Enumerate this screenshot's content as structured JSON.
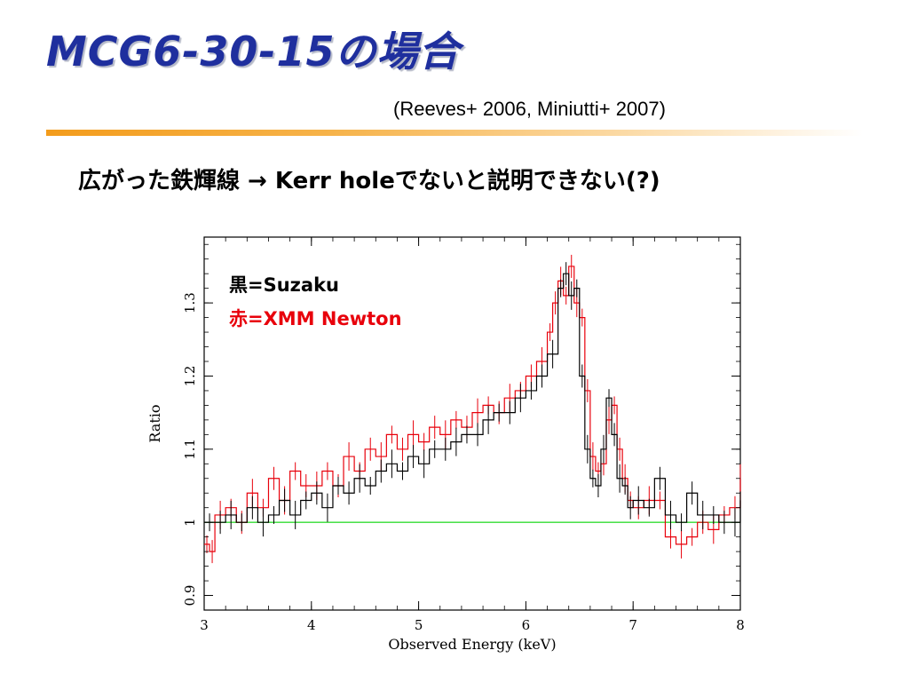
{
  "slide": {
    "title": "MCG6-30-15の場合",
    "citation": "(Reeves+ 2006, Miniutti+ 2007)",
    "statement": "広がった鉄輝線 → Kerr holeでないと説明できない(?)"
  },
  "colors": {
    "title": "#1f2f9e",
    "title_rule": "#f39c1c",
    "suzaku": "#000000",
    "xmm": "#e8000b",
    "reference_line": "#33dd33"
  },
  "chart_data": {
    "type": "line",
    "xlabel": "Observed Energy (keV)",
    "ylabel": "Ratio",
    "xlim": [
      3,
      8
    ],
    "ylim": [
      0.88,
      1.39
    ],
    "x_ticks": [
      3,
      4,
      5,
      6,
      7,
      8
    ],
    "y_ticks": [
      0.9,
      1,
      1.1,
      1.2,
      1.3
    ],
    "x_tick_labels": [
      "3",
      "4",
      "5",
      "6",
      "7",
      "8"
    ],
    "y_tick_labels": [
      "0.9",
      "1",
      "1.1",
      "1.2",
      "1.3"
    ],
    "legend": [
      {
        "text": "黒=Suzaku",
        "color": "#000000"
      },
      {
        "text": "赤=XMM Newton",
        "color": "#e8000b"
      }
    ],
    "reference_y": 1.0,
    "series": [
      {
        "color": "#000000",
        "x": [
          3.0,
          3.1,
          3.2,
          3.3,
          3.4,
          3.5,
          3.6,
          3.7,
          3.8,
          3.9,
          4.0,
          4.1,
          4.2,
          4.3,
          4.4,
          4.5,
          4.6,
          4.7,
          4.8,
          4.9,
          5.0,
          5.1,
          5.2,
          5.3,
          5.4,
          5.5,
          5.6,
          5.7,
          5.8,
          5.9,
          6.0,
          6.1,
          6.2,
          6.3,
          6.35,
          6.4,
          6.45,
          6.5,
          6.55,
          6.6,
          6.65,
          6.7,
          6.75,
          6.8,
          6.85,
          6.9,
          6.95,
          7.0,
          7.1,
          7.2,
          7.3,
          7.4,
          7.5,
          7.6,
          7.7,
          7.8,
          7.9,
          8.0
        ],
        "y": [
          1.0,
          1.0,
          1.01,
          1.0,
          1.02,
          1.0,
          1.01,
          1.03,
          1.01,
          1.03,
          1.04,
          1.02,
          1.05,
          1.04,
          1.06,
          1.05,
          1.07,
          1.08,
          1.07,
          1.09,
          1.08,
          1.1,
          1.1,
          1.11,
          1.12,
          1.12,
          1.14,
          1.15,
          1.15,
          1.17,
          1.18,
          1.2,
          1.23,
          1.32,
          1.34,
          1.31,
          1.32,
          1.2,
          1.1,
          1.06,
          1.05,
          1.1,
          1.17,
          1.12,
          1.06,
          1.05,
          1.02,
          1.03,
          1.02,
          1.06,
          1.01,
          1.0,
          1.04,
          1.01,
          1.01,
          1.0,
          1.0,
          1.03
        ]
      },
      {
        "color": "#e8000b",
        "x": [
          3.0,
          3.05,
          3.1,
          3.2,
          3.3,
          3.4,
          3.5,
          3.6,
          3.7,
          3.8,
          3.9,
          4.0,
          4.1,
          4.2,
          4.3,
          4.4,
          4.5,
          4.6,
          4.7,
          4.8,
          4.9,
          5.0,
          5.1,
          5.2,
          5.3,
          5.4,
          5.5,
          5.6,
          5.7,
          5.8,
          5.9,
          6.0,
          6.1,
          6.2,
          6.25,
          6.3,
          6.35,
          6.4,
          6.45,
          6.5,
          6.55,
          6.6,
          6.65,
          6.7,
          6.75,
          6.8,
          6.85,
          6.9,
          6.95,
          7.0,
          7.1,
          7.2,
          7.3,
          7.4,
          7.5,
          7.6,
          7.7,
          7.8,
          7.9,
          8.0
        ],
        "y": [
          0.97,
          0.96,
          1.01,
          1.02,
          1.0,
          1.04,
          1.02,
          1.06,
          1.03,
          1.07,
          1.05,
          1.05,
          1.07,
          1.05,
          1.09,
          1.07,
          1.1,
          1.09,
          1.12,
          1.1,
          1.12,
          1.11,
          1.13,
          1.12,
          1.14,
          1.13,
          1.15,
          1.16,
          1.15,
          1.17,
          1.18,
          1.2,
          1.22,
          1.26,
          1.3,
          1.33,
          1.31,
          1.35,
          1.3,
          1.28,
          1.18,
          1.09,
          1.07,
          1.08,
          1.14,
          1.16,
          1.1,
          1.06,
          1.03,
          1.02,
          1.03,
          1.03,
          0.98,
          0.97,
          0.98,
          1.0,
          0.99,
          1.01,
          1.02,
          1.06
        ]
      }
    ]
  }
}
